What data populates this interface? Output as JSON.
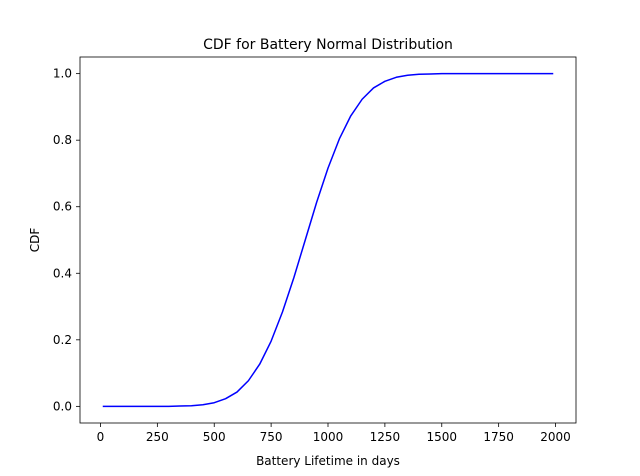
{
  "chart_data": {
    "type": "line",
    "title": "CDF for Battery Normal Distribution",
    "xlabel": "Battery Lifetime in days",
    "ylabel": "CDF",
    "xlim": [
      -90,
      2090
    ],
    "ylim": [
      -0.05,
      1.05
    ],
    "xticks": [
      0,
      250,
      500,
      750,
      1000,
      1250,
      1500,
      1750,
      2000
    ],
    "xtick_labels": [
      "0",
      "250",
      "500",
      "750",
      "1000",
      "1250",
      "1500",
      "1750",
      "2000"
    ],
    "yticks": [
      0.0,
      0.2,
      0.4,
      0.6,
      0.8,
      1.0
    ],
    "ytick_labels": [
      "0.0",
      "0.2",
      "0.4",
      "0.6",
      "0.8",
      "1.0"
    ],
    "grid": false,
    "legend": "none",
    "colors": {
      "line": "#0000ff",
      "axes": "#000000",
      "background": "#ffffff"
    },
    "series": [
      {
        "x": [
          10,
          100,
          200,
          250,
          300,
          350,
          400,
          450,
          500,
          550,
          600,
          650,
          700,
          750,
          800,
          850,
          900,
          950,
          1000,
          1050,
          1100,
          1150,
          1200,
          1250,
          1300,
          1350,
          1400,
          1450,
          1500,
          1550,
          1600,
          1700,
          1800,
          1900,
          1990
        ],
        "y": [
          0.0,
          0.0,
          0.0,
          0.0,
          0.0,
          0.001,
          0.002,
          0.005,
          0.011,
          0.023,
          0.043,
          0.077,
          0.127,
          0.196,
          0.284,
          0.387,
          0.5,
          0.613,
          0.716,
          0.804,
          0.873,
          0.923,
          0.957,
          0.977,
          0.989,
          0.995,
          0.998,
          0.999,
          1.0,
          1.0,
          1.0,
          1.0,
          1.0,
          1.0,
          1.0
        ]
      }
    ]
  }
}
